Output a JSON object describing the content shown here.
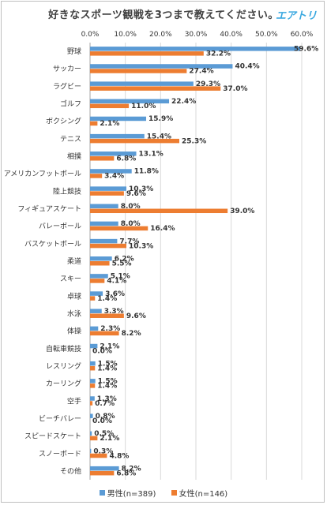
{
  "title": "好きなスポーツ観戦を3つまで教えてください。",
  "brand": "エアトリ",
  "colors": {
    "male": "#5b9bd5",
    "female": "#ed7d31",
    "grid": "#d9d9d9",
    "text": "#333333"
  },
  "chart_data": {
    "type": "bar",
    "orientation": "horizontal",
    "title": "好きなスポーツ観戦を3つまで教えてください。",
    "xlim": [
      0,
      60
    ],
    "xticks": [
      "0.0%",
      "10.0%",
      "20.0%",
      "30.0%",
      "40.0%",
      "50.0%",
      "60.0%"
    ],
    "tick_values": [
      0,
      10,
      20,
      30,
      40,
      50,
      60
    ],
    "grid": true,
    "legend_position": "bottom",
    "categories": [
      "野球",
      "サッカー",
      "ラグビー",
      "ゴルフ",
      "ボクシング",
      "テニス",
      "相撲",
      "アメリカンフットボール",
      "陸上競技",
      "フィギュアスケート",
      "バレーボール",
      "バスケットボール",
      "柔道",
      "スキー",
      "卓球",
      "水泳",
      "体操",
      "自転車競技",
      "レスリング",
      "カーリング",
      "空手",
      "ビーチバレー",
      "スピードスケート",
      "スノーボード",
      "その他"
    ],
    "series": [
      {
        "name": "男性(n=389)",
        "values": [
          59.6,
          40.4,
          29.3,
          22.4,
          15.9,
          15.4,
          13.1,
          11.8,
          10.3,
          8.0,
          8.0,
          7.7,
          6.2,
          5.1,
          3.6,
          3.3,
          2.3,
          2.1,
          1.5,
          1.5,
          1.3,
          0.8,
          0.5,
          0.3,
          8.2
        ]
      },
      {
        "name": "女性(n=146)",
        "values": [
          32.2,
          27.4,
          37.0,
          11.0,
          2.1,
          25.3,
          6.8,
          3.4,
          9.6,
          39.0,
          16.4,
          10.3,
          5.5,
          4.1,
          1.4,
          9.6,
          8.2,
          0.0,
          1.4,
          1.4,
          0.7,
          0.0,
          2.1,
          4.8,
          6.8
        ]
      }
    ]
  }
}
